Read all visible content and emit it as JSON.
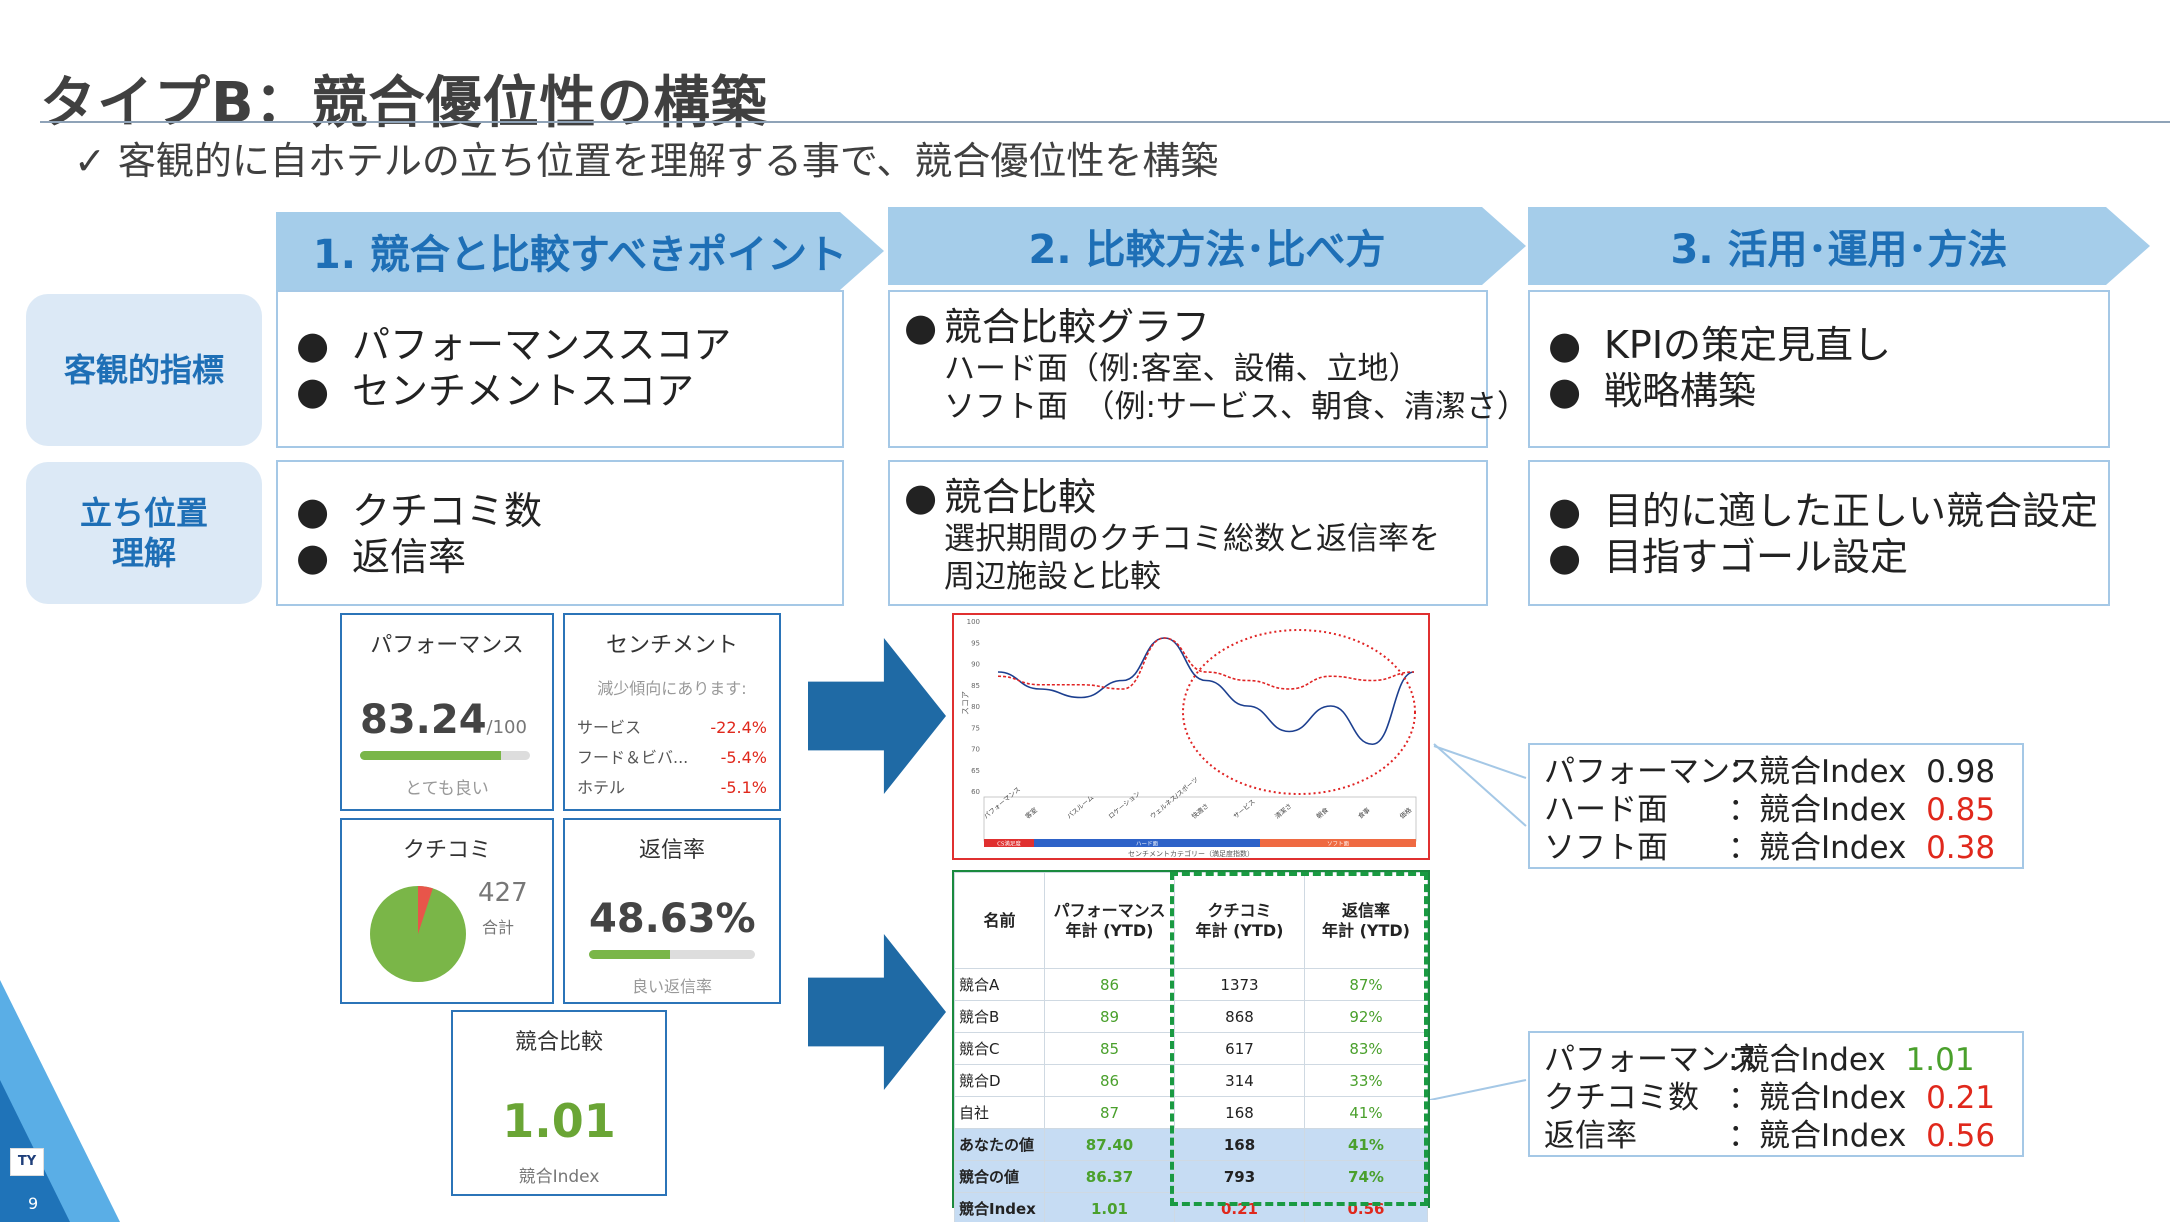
{
  "header": {
    "title": "タイプB：競合優位性の構築",
    "subtitle": "✓ 客観的に自ホテルの立ち位置を理解する事で、競合優位性を構築"
  },
  "columns": [
    {
      "label": "1. 競合と比較すべきポイント"
    },
    {
      "label": "2. 比較方法･比べ方"
    },
    {
      "label": "3. 活用･運用･方法"
    }
  ],
  "rows": [
    {
      "label_line1": "客観的指標",
      "label_line2": ""
    },
    {
      "label_line1": "立ち位置",
      "label_line2": "理解"
    }
  ],
  "grid": {
    "r1c1": [
      "パフォーマンススコア",
      "センチメントスコア"
    ],
    "r1c2": {
      "head": "競合比較グラフ",
      "line1": "ハード面（例:客室、設備、立地）",
      "line2": "ソフト面　（例:サービス、朝食、清潔さ）"
    },
    "r1c3": [
      "KPIの策定見直し",
      "戦略構築"
    ],
    "r2c1": [
      "クチコミ数",
      "返信率"
    ],
    "r2c2": {
      "head": "競合比較",
      "line1": "選択期間のクチコミ総数と返信率を",
      "line2": "周辺施設と比較"
    },
    "r2c3": [
      "目的に適した正しい競合設定",
      "目指すゴール設定"
    ]
  },
  "cards": {
    "performance": {
      "title": "パフォーマンス",
      "value": "83.24",
      "suffix": "/100",
      "caption": "とても良い",
      "progress": 0.83
    },
    "sentiment": {
      "title": "センチメント",
      "note": "減少傾向にあります:",
      "items": [
        {
          "label": "サービス",
          "value": "-22.4%"
        },
        {
          "label": "フード＆ビバ...",
          "value": "-5.4%"
        },
        {
          "label": "ホテル",
          "value": "-5.1%"
        }
      ]
    },
    "reviews": {
      "title": "クチコミ",
      "count": "427",
      "count_label": "合計",
      "negative_share": 0.05
    },
    "reply": {
      "title": "返信率",
      "value": "48.63%",
      "caption": "良い返信率",
      "progress": 0.49
    },
    "competitive": {
      "title": "競合比較",
      "value": "1.01",
      "caption": "競合Index"
    }
  },
  "chart_data": {
    "type": "line",
    "categories": [
      "パフォーマンス",
      "客室",
      "バスルーム",
      "ロケーション",
      "ウェルネス/スポーツ",
      "快適さ",
      "サービス",
      "清潔さ",
      "朝食",
      "食事",
      "価格"
    ],
    "series": [
      {
        "values": [
          88,
          84,
          82,
          86,
          96,
          86,
          80,
          74,
          80,
          71,
          88
        ]
      },
      {
        "values": [
          87,
          85,
          85,
          84,
          96,
          88,
          86,
          84,
          87,
          86,
          88
        ]
      }
    ],
    "ylim": [
      60,
      100
    ],
    "yticks": [
      "100",
      "95",
      "90",
      "85",
      "80",
      "75",
      "70",
      "65",
      "60"
    ],
    "ylabel": "スコア",
    "xlabel": "センチメントカテゴリー（満足度指数）",
    "band_labels": [
      "CS満足度",
      "ハード面",
      "ソフト面"
    ],
    "band_colors": [
      "#e03030",
      "#2e62c8",
      "#ef6a42"
    ],
    "series_colors": [
      "#1c3f8f",
      "#e02424"
    ]
  },
  "callouts": {
    "top": [
      {
        "label": "パフォーマンス",
        "sep": "：競合Index",
        "value": "0.98",
        "tone": "normal"
      },
      {
        "label": "ハード面",
        "sep": "：競合Index",
        "value": "0.85",
        "tone": "red"
      },
      {
        "label": "ソフト面",
        "sep": "：競合Index",
        "value": "0.38",
        "tone": "red"
      }
    ],
    "bottom": [
      {
        "label": "パフォーマンス",
        "sep": ":競合Index",
        "value": "1.01",
        "tone": "green"
      },
      {
        "label": "クチコミ数",
        "sep": "：競合Index",
        "value": "0.21",
        "tone": "red"
      },
      {
        "label": "返信率",
        "sep": "：競合Index",
        "value": "0.56",
        "tone": "red"
      }
    ]
  },
  "table": {
    "headers": [
      {
        "l1": "名前",
        "l2": ""
      },
      {
        "l1": "パフォーマンス",
        "l2": "年計 (YTD)"
      },
      {
        "l1": "クチコミ",
        "l2": "年計 (YTD)"
      },
      {
        "l1": "返信率",
        "l2": "年計 (YTD)"
      }
    ],
    "rows": [
      [
        "競合A",
        "86",
        "1373",
        "87%"
      ],
      [
        "競合B",
        "89",
        "868",
        "92%"
      ],
      [
        "競合C",
        "85",
        "617",
        "83%"
      ],
      [
        "競合D",
        "86",
        "314",
        "33%"
      ],
      [
        "自社",
        "87",
        "168",
        "41%"
      ]
    ],
    "summary": [
      [
        "あなたの値",
        "87.40",
        "168",
        "41%"
      ],
      [
        "競合の値",
        "86.37",
        "793",
        "74%"
      ],
      [
        "競合Index",
        "1.01",
        "0.21",
        "0.56"
      ]
    ]
  },
  "footer": {
    "logo": "TY",
    "page": "9"
  }
}
